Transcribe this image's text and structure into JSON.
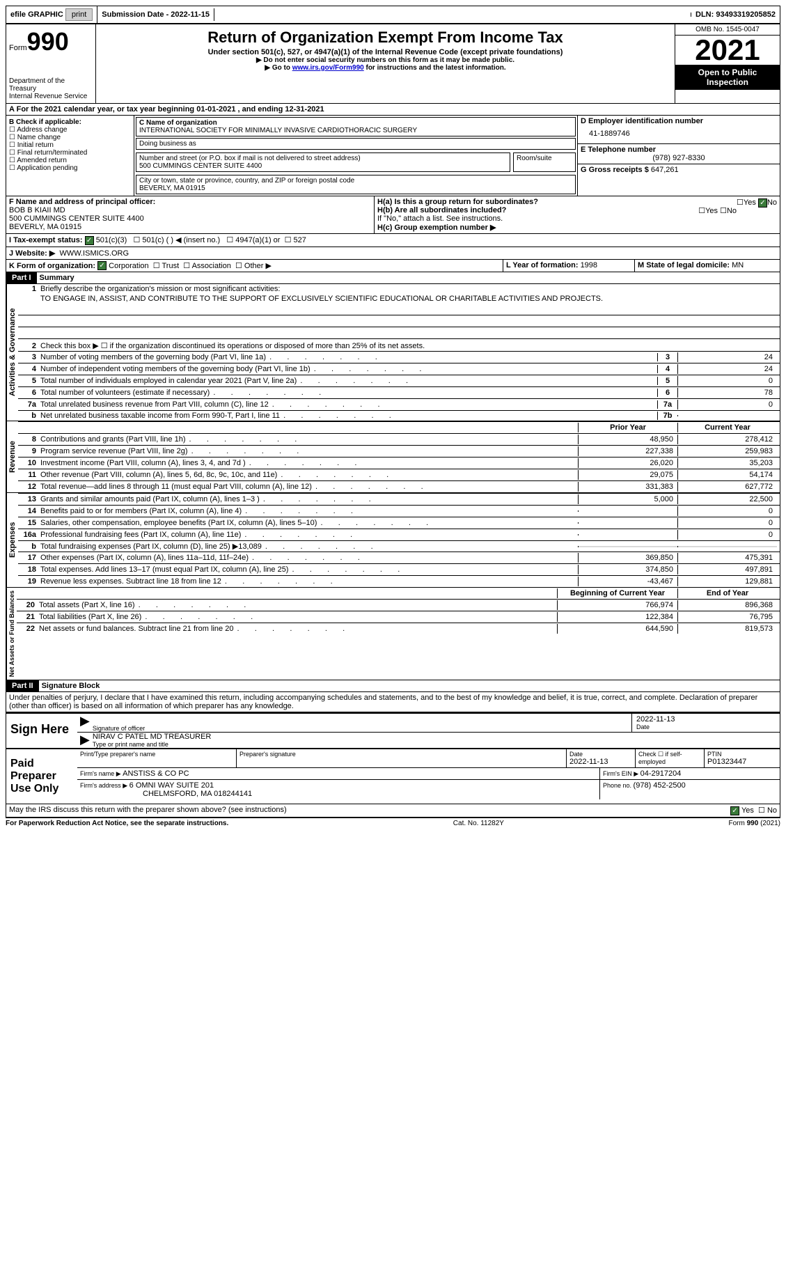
{
  "topbar": {
    "efile": "efile GRAPHIC",
    "print": "print",
    "submission_label": "Submission Date - ",
    "submission_date": "2022-11-15",
    "dln_label": "DLN: ",
    "dln": "93493319205852"
  },
  "header": {
    "form_label": "Form",
    "form_num": "990",
    "dept": "Department of the Treasury\nInternal Revenue Service",
    "title": "Return of Organization Exempt From Income Tax",
    "subtitle": "Under section 501(c), 527, or 4947(a)(1) of the Internal Revenue Code (except private foundations)",
    "line1": "▶ Do not enter social security numbers on this form as it may be made public.",
    "line2_pre": "▶ Go to ",
    "line2_link": "www.irs.gov/Form990",
    "line2_post": " for instructions and the latest information.",
    "omb": "OMB No. 1545-0047",
    "year": "2021",
    "open": "Open to Public Inspection"
  },
  "period": {
    "text_pre": "For the 2021 calendar year, or tax year beginning ",
    "begin": "01-01-2021",
    "mid": "   , and ending ",
    "end": "12-31-2021"
  },
  "boxB": {
    "label": "B Check if applicable:",
    "items": [
      "Address change",
      "Name change",
      "Initial return",
      "Final return/terminated",
      "Amended return",
      "Application pending"
    ]
  },
  "boxC": {
    "name_label": "C Name of organization",
    "name": "INTERNATIONAL SOCIETY FOR MINIMALLY INVASIVE CARDIOTHORACIC SURGERY",
    "dba_label": "Doing business as",
    "dba": "",
    "street_label": "Number and street (or P.O. box if mail is not delivered to street address)",
    "street": "500 CUMMINGS CENTER SUITE 4400",
    "room_label": "Room/suite",
    "room": "",
    "city_label": "City or town, state or province, country, and ZIP or foreign postal code",
    "city": "BEVERLY, MA  01915"
  },
  "boxD": {
    "label": "D Employer identification number",
    "value": "41-1889746"
  },
  "boxE": {
    "label": "E Telephone number",
    "value": "(978) 927-8330"
  },
  "boxG": {
    "label": "G Gross receipts $ ",
    "value": "647,261"
  },
  "boxF": {
    "label": "F Name and address of principal officer:",
    "name": "BOB B KIAII MD",
    "addr1": "500 CUMMINGS CENTER SUITE 4400",
    "addr2": "BEVERLY, MA  01915"
  },
  "boxH": {
    "a": "H(a)  Is this a group return for subordinates?",
    "a_no": "No",
    "b": "H(b)  Are all subordinates included?",
    "b_note": "If \"No,\" attach a list. See instructions.",
    "c": "H(c)  Group exemption number ▶",
    "yes": "Yes",
    "no": "No"
  },
  "boxI": {
    "label": "I    Tax-exempt status:",
    "opt1": "501(c)(3)",
    "opt2": "501(c) (  ) ◀ (insert no.)",
    "opt3": "4947(a)(1) or",
    "opt4": "527"
  },
  "boxJ": {
    "label": "J   Website: ▶",
    "value": "WWW.ISMICS.ORG"
  },
  "boxK": {
    "label": "K Form of organization:",
    "opts": [
      "Corporation",
      "Trust",
      "Association",
      "Other ▶"
    ]
  },
  "boxL": {
    "label": "L Year of formation: ",
    "value": "1998"
  },
  "boxM": {
    "label": "M State of legal domicile: ",
    "value": "MN"
  },
  "part1": {
    "header": "Part I",
    "title": "Summary",
    "q1_label": "Briefly describe the organization's mission or most significant activities:",
    "q1_text": "TO ENGAGE IN, ASSIST, AND CONTRIBUTE TO THE SUPPORT OF EXCLUSIVELY SCIENTIFIC EDUCATIONAL OR CHARITABLE ACTIVITIES AND PROJECTS.",
    "q2": "Check this box ▶ ☐ if the organization discontinued its operations or disposed of more than 25% of its net assets.",
    "lines": [
      {
        "n": "3",
        "t": "Number of voting members of the governing body (Part VI, line 1a)",
        "box": "3",
        "v": "24"
      },
      {
        "n": "4",
        "t": "Number of independent voting members of the governing body (Part VI, line 1b)",
        "box": "4",
        "v": "24"
      },
      {
        "n": "5",
        "t": "Total number of individuals employed in calendar year 2021 (Part V, line 2a)",
        "box": "5",
        "v": "0"
      },
      {
        "n": "6",
        "t": "Total number of volunteers (estimate if necessary)",
        "box": "6",
        "v": "78"
      },
      {
        "n": "7a",
        "t": "Total unrelated business revenue from Part VIII, column (C), line 12",
        "box": "7a",
        "v": "0"
      },
      {
        "n": "b",
        "t": "Net unrelated business taxable income from Form 990-T, Part I, line 11",
        "box": "7b",
        "v": ""
      }
    ],
    "col_prior": "Prior Year",
    "col_current": "Current Year",
    "rev_lines": [
      {
        "n": "8",
        "t": "Contributions and grants (Part VIII, line 1h)",
        "p": "48,950",
        "c": "278,412"
      },
      {
        "n": "9",
        "t": "Program service revenue (Part VIII, line 2g)",
        "p": "227,338",
        "c": "259,983"
      },
      {
        "n": "10",
        "t": "Investment income (Part VIII, column (A), lines 3, 4, and 7d )",
        "p": "26,020",
        "c": "35,203"
      },
      {
        "n": "11",
        "t": "Other revenue (Part VIII, column (A), lines 5, 6d, 8c, 9c, 10c, and 11e)",
        "p": "29,075",
        "c": "54,174"
      },
      {
        "n": "12",
        "t": "Total revenue—add lines 8 through 11 (must equal Part VIII, column (A), line 12)",
        "p": "331,383",
        "c": "627,772"
      }
    ],
    "exp_lines": [
      {
        "n": "13",
        "t": "Grants and similar amounts paid (Part IX, column (A), lines 1–3 )",
        "p": "5,000",
        "c": "22,500"
      },
      {
        "n": "14",
        "t": "Benefits paid to or for members (Part IX, column (A), line 4)",
        "p": "",
        "c": "0"
      },
      {
        "n": "15",
        "t": "Salaries, other compensation, employee benefits (Part IX, column (A), lines 5–10)",
        "p": "",
        "c": "0"
      },
      {
        "n": "16a",
        "t": "Professional fundraising fees (Part IX, column (A), line 11e)",
        "p": "",
        "c": "0"
      },
      {
        "n": "b",
        "t": "Total fundraising expenses (Part IX, column (D), line 25) ▶13,089",
        "p": "",
        "c": "",
        "shade": true
      },
      {
        "n": "17",
        "t": "Other expenses (Part IX, column (A), lines 11a–11d, 11f–24e)",
        "p": "369,850",
        "c": "475,391"
      },
      {
        "n": "18",
        "t": "Total expenses. Add lines 13–17 (must equal Part IX, column (A), line 25)",
        "p": "374,850",
        "c": "497,891"
      },
      {
        "n": "19",
        "t": "Revenue less expenses. Subtract line 18 from line 12",
        "p": "-43,467",
        "c": "129,881"
      }
    ],
    "col_begin": "Beginning of Current Year",
    "col_end": "End of Year",
    "net_lines": [
      {
        "n": "20",
        "t": "Total assets (Part X, line 16)",
        "p": "766,974",
        "c": "896,368"
      },
      {
        "n": "21",
        "t": "Total liabilities (Part X, line 26)",
        "p": "122,384",
        "c": "76,795"
      },
      {
        "n": "22",
        "t": "Net assets or fund balances. Subtract line 21 from line 20",
        "p": "644,590",
        "c": "819,573"
      }
    ],
    "vlabels": {
      "gov": "Activities & Governance",
      "rev": "Revenue",
      "exp": "Expenses",
      "net": "Net Assets or Fund Balances"
    }
  },
  "part2": {
    "header": "Part II",
    "title": "Signature Block",
    "perjury": "Under penalties of perjury, I declare that I have examined this return, including accompanying schedules and statements, and to the best of my knowledge and belief, it is true, correct, and complete. Declaration of preparer (other than officer) is based on all information of which preparer has any knowledge.",
    "sign_here": "Sign Here",
    "sig_officer": "Signature of officer",
    "sig_date": "2022-11-13",
    "date_label": "Date",
    "name_title": "NIRAV C PATEL MD  TREASURER",
    "name_label": "Type or print name and title",
    "paid": "Paid Preparer Use Only",
    "prep_name_label": "Print/Type preparer's name",
    "prep_sig_label": "Preparer's signature",
    "prep_date_label": "Date",
    "prep_date": "2022-11-13",
    "prep_check": "Check ☐ if self-employed",
    "ptin_label": "PTIN",
    "ptin": "P01323447",
    "firm_name_label": "Firm's name    ▶ ",
    "firm_name": "ANSTISS & CO PC",
    "firm_ein_label": "Firm's EIN ▶ ",
    "firm_ein": "04-2917204",
    "firm_addr_label": "Firm's address ▶ ",
    "firm_addr1": "6 OMNI WAY SUITE 201",
    "firm_addr2": "CHELMSFORD, MA  018244141",
    "phone_label": "Phone no. ",
    "phone": "(978) 452-2500",
    "discuss": "May the IRS discuss this return with the preparer shown above? (see instructions)",
    "yes": "Yes",
    "no": "No"
  },
  "footer": {
    "left": "For Paperwork Reduction Act Notice, see the separate instructions.",
    "mid": "Cat. No. 11282Y",
    "right": "Form 990 (2021)"
  }
}
